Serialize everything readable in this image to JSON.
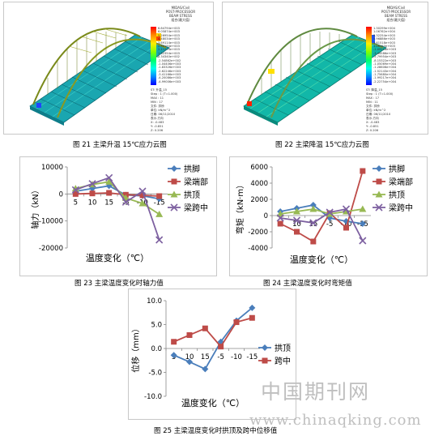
{
  "fem_panels": [
    {
      "legend_title_lines": [
        "MIDAS/Civil",
        "POST-PROCESSOR",
        "BEAM STRESS"
      ],
      "legend_sub": "组合(最大值)",
      "legend_values": [
        "6.84794e+003",
        "6.05874e+003",
        "5.26954e+003",
        "4.48034e+003",
        "3.69114e+003",
        "2.90194e+003",
        "2.11274e+003",
        "1.32354e+003",
        "5.34340e+002",
        "-2.54862e+002",
        "-1.04406e+003",
        "-1.83326e+003",
        "-2.62246e+003",
        "-3.41166e+003",
        "-4.20086e+003",
        "-4.99006e+003"
      ],
      "legend_info": [
        "ST: 升温_15",
        "Step : 1 (T=1.000)",
        "MAX : 11",
        "MIN : 17",
        "文件: 拱桥",
        "单位: kN/m^2",
        "日期: 06/11/2010",
        "表示-方向",
        "X: -0.483",
        "Y: -0.851",
        "Z: 0.206"
      ],
      "caption": "图 21  主梁升温 15℃应力云图"
    },
    {
      "legend_title_lines": [
        "MIDAS/Civil",
        "POST-PROCESSOR",
        "BEAM STRESS"
      ],
      "legend_sub": "组合(最大值)",
      "legend_values": [
        "1.30299e+004",
        "1.06762e+004",
        "8.32254e+003",
        "5.96886e+003",
        "3.61518e+003",
        "1.26150e+003",
        "-1.09218e+003",
        "-3.44586e+003",
        "-5.79954e+003",
        "-8.15322e+003",
        "-1.05069e+004",
        "-1.28606e+004",
        "-1.52143e+004",
        "-1.75680e+004",
        "-1.99217e+004",
        "-2.22754e+004"
      ],
      "legend_info": [
        "ST: 降温_15",
        "Step : 1 (T=1.000)",
        "MAX : 17",
        "MIN : 11",
        "文件: 拱桥",
        "单位: kN/m^2",
        "日期: 06/11/2010",
        "表示-方向",
        "X: -0.483",
        "Y: -0.851",
        "Z: 0.206"
      ],
      "caption": "图 22  主梁降温 15℃应力云图"
    }
  ],
  "chart_data": [
    {
      "type": "line",
      "categories": [
        "5",
        "10",
        "15",
        "-5",
        "-10",
        "-15"
      ],
      "ylabel": "轴力（kN）",
      "xlabel": "温度变化（℃）",
      "ylim": [
        -20000,
        10000
      ],
      "yticks": [
        "10000",
        "0",
        "-10000",
        "-20000"
      ],
      "ytick_values": [
        10000,
        0,
        -10000,
        -20000
      ],
      "series": [
        {
          "name": "拱脚",
          "color": "#4a7ebb",
          "marker": "diamond",
          "values": [
            1000,
            2000,
            3000,
            -400,
            -700,
            -1800
          ]
        },
        {
          "name": "梁端部",
          "color": "#be4b48",
          "marker": "square",
          "values": [
            0,
            200,
            400,
            -300,
            -500,
            -800
          ]
        },
        {
          "name": "拱顶",
          "color": "#98b954",
          "marker": "triangle",
          "values": [
            2000,
            3500,
            4500,
            -1500,
            -3500,
            -7500
          ]
        },
        {
          "name": "梁跨中",
          "color": "#7d60a0",
          "marker": "x",
          "values": [
            1500,
            3800,
            6000,
            -3000,
            1000,
            -17000
          ]
        }
      ],
      "caption": "图 23  主梁温度变化时轴力值"
    },
    {
      "type": "line",
      "categories": [
        "5",
        "10",
        "15",
        "-5",
        "-10",
        "-15"
      ],
      "ylabel": "弯矩（kN·m）",
      "xlabel": "温度变化（℃）",
      "ylim": [
        -4000,
        6000
      ],
      "yticks": [
        "6000",
        "4000",
        "2000",
        "0",
        "-2000",
        "-4000"
      ],
      "ytick_values": [
        6000,
        4000,
        2000,
        0,
        -2000,
        -4000
      ],
      "series": [
        {
          "name": "拱脚",
          "color": "#4a7ebb",
          "marker": "diamond",
          "values": [
            500,
            900,
            1300,
            -300,
            -700,
            -1000
          ]
        },
        {
          "name": "梁端部",
          "color": "#be4b48",
          "marker": "square",
          "values": [
            -1000,
            -2000,
            -3200,
            300,
            -1500,
            5500
          ]
        },
        {
          "name": "拱顶",
          "color": "#98b954",
          "marker": "triangle",
          "values": [
            200,
            500,
            800,
            200,
            500,
            800
          ]
        },
        {
          "name": "梁跨中",
          "color": "#7d60a0",
          "marker": "x",
          "values": [
            -300,
            -600,
            -900,
            400,
            800,
            -3100
          ]
        }
      ],
      "caption": "图 24  主梁温度变化时弯矩值"
    },
    {
      "type": "line",
      "categories": [
        "5",
        "10",
        "15",
        "-5",
        "-10",
        "-15"
      ],
      "ylabel": "位移（mm）",
      "xlabel": "温度变化（℃）",
      "ylim": [
        -10,
        10
      ],
      "yticks": [
        "10.0",
        "5.0",
        "0.0",
        "-5.0",
        "-10.0"
      ],
      "ytick_values": [
        10,
        5,
        0,
        -5,
        -10
      ],
      "series": [
        {
          "name": "拱顶",
          "color": "#4a7ebb",
          "marker": "diamond",
          "values": [
            -1.4,
            -2.8,
            -4.3,
            1.4,
            5.8,
            8.5
          ]
        },
        {
          "name": "跨中",
          "color": "#be4b48",
          "marker": "square",
          "values": [
            1.4,
            2.8,
            4.2,
            0.4,
            5.5,
            6.4
          ]
        }
      ],
      "caption": "图 25  主梁温度变化时拱顶及跨中位移值"
    }
  ],
  "watermark": {
    "line1": "中国期刊网",
    "line2": "www.chinaqking.com"
  }
}
